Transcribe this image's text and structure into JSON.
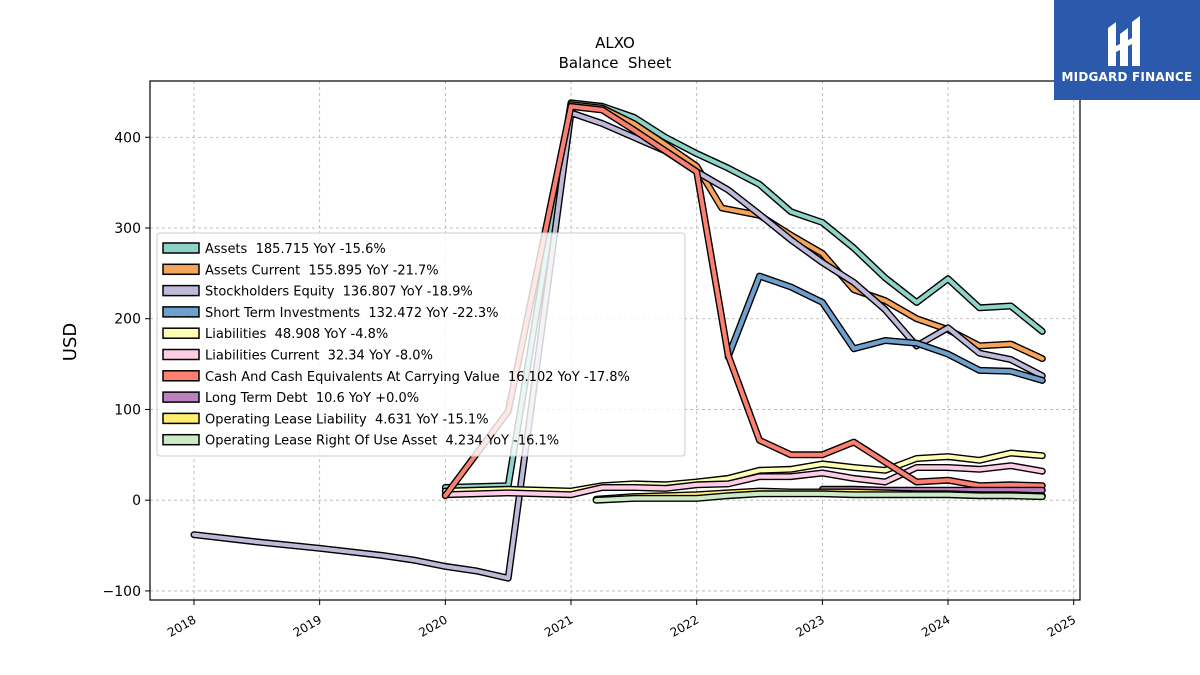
{
  "logo": {
    "text": "MIDGARD FINANCE",
    "icon": "midgard-logo-icon",
    "background": "#2b5aac"
  },
  "chart_data": {
    "type": "line",
    "title": "ALXO",
    "subtitle": "Balance  Sheet",
    "ylabel": "USD",
    "xlabel": "",
    "xlim": [
      2017.65,
      2025.05
    ],
    "ylim": [
      -110,
      462
    ],
    "x_ticks": [
      2018,
      2019,
      2020,
      2021,
      2022,
      2023,
      2024,
      2025
    ],
    "x_tick_labels": [
      "2018",
      "2019",
      "2020",
      "2021",
      "2022",
      "2023",
      "2024",
      "2025"
    ],
    "y_ticks": [
      -100,
      0,
      100,
      200,
      300,
      400
    ],
    "y_tick_labels": [
      "−100",
      "0",
      "100",
      "200",
      "300",
      "400"
    ],
    "grid": true,
    "legend_position": "center-left",
    "series": [
      {
        "name": "Assets",
        "legend": "Assets  185.715 YoY -15.6%",
        "color": "#8dd3c7",
        "points": [
          [
            2020.0,
            14
          ],
          [
            2020.5,
            16
          ],
          [
            2021.0,
            438
          ],
          [
            2021.25,
            434
          ],
          [
            2021.5,
            422
          ],
          [
            2021.75,
            400
          ],
          [
            2022.0,
            382
          ],
          [
            2022.25,
            366
          ],
          [
            2022.5,
            348
          ],
          [
            2022.75,
            318
          ],
          [
            2023.0,
            306
          ],
          [
            2023.25,
            278
          ],
          [
            2023.5,
            245
          ],
          [
            2023.75,
            218
          ],
          [
            2024.0,
            244
          ],
          [
            2024.25,
            212
          ],
          [
            2024.5,
            214
          ],
          [
            2024.75,
            186
          ]
        ]
      },
      {
        "name": "Assets Current",
        "legend": "Assets Current  155.895 YoY -21.7%",
        "color": "#f6a45b",
        "points": [
          [
            2021.0,
            436
          ],
          [
            2021.25,
            432
          ],
          [
            2021.5,
            415
          ],
          [
            2021.75,
            392
          ],
          [
            2022.0,
            368
          ],
          [
            2022.2,
            322
          ],
          [
            2022.5,
            314
          ],
          [
            2022.75,
            292
          ],
          [
            2023.0,
            272
          ],
          [
            2023.25,
            232
          ],
          [
            2023.5,
            220
          ],
          [
            2023.75,
            200
          ],
          [
            2024.0,
            188
          ],
          [
            2024.25,
            170
          ],
          [
            2024.5,
            172
          ],
          [
            2024.75,
            156
          ]
        ]
      },
      {
        "name": "Stockholders Equity",
        "legend": "Stockholders Equity  136.807 YoY -18.9%",
        "color": "#bebada",
        "points": [
          [
            2018.0,
            -38
          ],
          [
            2018.5,
            -46
          ],
          [
            2019.0,
            -53
          ],
          [
            2019.5,
            -61
          ],
          [
            2019.75,
            -66
          ],
          [
            2020.0,
            -73
          ],
          [
            2020.25,
            -78
          ],
          [
            2020.5,
            -86
          ],
          [
            2021.0,
            427
          ],
          [
            2021.25,
            415
          ],
          [
            2021.5,
            400
          ],
          [
            2021.75,
            385
          ],
          [
            2022.0,
            362
          ],
          [
            2022.25,
            342
          ],
          [
            2022.5,
            315
          ],
          [
            2022.75,
            287
          ],
          [
            2023.0,
            262
          ],
          [
            2023.25,
            240
          ],
          [
            2023.5,
            210
          ],
          [
            2023.75,
            170
          ],
          [
            2024.0,
            190
          ],
          [
            2024.25,
            162
          ],
          [
            2024.5,
            155
          ],
          [
            2024.75,
            137
          ]
        ]
      },
      {
        "name": "Short Term Investments",
        "legend": "Short Term Investments  132.472 YoY -22.3%",
        "color": "#6fa0cd",
        "points": [
          [
            2022.25,
            158
          ],
          [
            2022.5,
            247
          ],
          [
            2022.75,
            235
          ],
          [
            2023.0,
            218
          ],
          [
            2023.25,
            167
          ],
          [
            2023.5,
            176
          ],
          [
            2023.75,
            173
          ],
          [
            2024.0,
            161
          ],
          [
            2024.25,
            143
          ],
          [
            2024.5,
            142
          ],
          [
            2024.75,
            132
          ]
        ]
      },
      {
        "name": "Liabilities",
        "legend": "Liabilities  48.908 YoY -4.8%",
        "color": "#ffffb3",
        "points": [
          [
            2020.0,
            10
          ],
          [
            2020.5,
            12
          ],
          [
            2021.0,
            10
          ],
          [
            2021.25,
            16
          ],
          [
            2021.5,
            18
          ],
          [
            2021.75,
            17
          ],
          [
            2022.0,
            20
          ],
          [
            2022.25,
            24
          ],
          [
            2022.5,
            33
          ],
          [
            2022.75,
            34
          ],
          [
            2023.0,
            40
          ],
          [
            2023.25,
            36
          ],
          [
            2023.5,
            33
          ],
          [
            2023.75,
            46
          ],
          [
            2024.0,
            48
          ],
          [
            2024.25,
            44
          ],
          [
            2024.5,
            52
          ],
          [
            2024.75,
            49
          ]
        ]
      },
      {
        "name": "Liabilities Current",
        "legend": "Liabilities Current  32.34 YoY -8.0%",
        "color": "#fccde5",
        "points": [
          [
            2020.0,
            6
          ],
          [
            2020.5,
            8
          ],
          [
            2021.0,
            6
          ],
          [
            2021.25,
            14
          ],
          [
            2021.5,
            14
          ],
          [
            2021.75,
            13
          ],
          [
            2022.0,
            17
          ],
          [
            2022.25,
            18
          ],
          [
            2022.5,
            26
          ],
          [
            2022.75,
            26
          ],
          [
            2023.0,
            30
          ],
          [
            2023.25,
            24
          ],
          [
            2023.5,
            20
          ],
          [
            2023.75,
            36
          ],
          [
            2024.0,
            36
          ],
          [
            2024.25,
            34
          ],
          [
            2024.5,
            38
          ],
          [
            2024.75,
            32
          ]
        ]
      },
      {
        "name": "Cash And Cash Equivalents At Carrying Value",
        "legend": "Cash And Cash Equivalents At Carrying Value  16.102 YoY -17.8%",
        "color": "#fb8072",
        "points": [
          [
            2020.0,
            5
          ],
          [
            2020.5,
            98
          ],
          [
            2021.0,
            434
          ],
          [
            2021.25,
            430
          ],
          [
            2021.5,
            408
          ],
          [
            2021.75,
            385
          ],
          [
            2022.0,
            362
          ],
          [
            2022.25,
            160
          ],
          [
            2022.5,
            66
          ],
          [
            2022.75,
            50
          ],
          [
            2023.0,
            50
          ],
          [
            2023.25,
            64
          ],
          [
            2023.5,
            42
          ],
          [
            2023.75,
            20
          ],
          [
            2024.0,
            22
          ],
          [
            2024.25,
            16
          ],
          [
            2024.5,
            17
          ],
          [
            2024.75,
            16
          ]
        ]
      },
      {
        "name": "Long Term Debt",
        "legend": "Long Term Debt  10.6 YoY +0.0%",
        "color": "#bc80bd",
        "points": [
          [
            2023.0,
            12
          ],
          [
            2023.25,
            12
          ],
          [
            2023.5,
            11
          ],
          [
            2023.75,
            11
          ],
          [
            2024.0,
            11
          ],
          [
            2024.25,
            11
          ],
          [
            2024.5,
            11
          ],
          [
            2024.75,
            11
          ]
        ]
      },
      {
        "name": "Operating Lease Liability",
        "legend": "Operating Lease Liability  4.631 YoY -15.1%",
        "color": "#ffed6f",
        "points": [
          [
            2021.2,
            1
          ],
          [
            2021.5,
            4
          ],
          [
            2021.75,
            5
          ],
          [
            2022.0,
            6
          ],
          [
            2022.25,
            8
          ],
          [
            2022.5,
            10
          ],
          [
            2022.75,
            9
          ],
          [
            2023.0,
            9
          ],
          [
            2023.25,
            9
          ],
          [
            2023.5,
            8
          ],
          [
            2023.75,
            7
          ],
          [
            2024.0,
            7
          ],
          [
            2024.25,
            6
          ],
          [
            2024.5,
            6
          ],
          [
            2024.75,
            5
          ]
        ]
      },
      {
        "name": "Operating Lease Right Of Use Asset",
        "legend": "Operating Lease Right Of Use Asset  4.234 YoY -16.1%",
        "color": "#ccebc5",
        "points": [
          [
            2021.2,
            0
          ],
          [
            2021.5,
            2
          ],
          [
            2021.75,
            2
          ],
          [
            2022.0,
            2
          ],
          [
            2022.25,
            5
          ],
          [
            2022.5,
            7
          ],
          [
            2022.75,
            7
          ],
          [
            2023.0,
            7
          ],
          [
            2023.25,
            6
          ],
          [
            2023.5,
            6
          ],
          [
            2023.75,
            6
          ],
          [
            2024.0,
            6
          ],
          [
            2024.25,
            5
          ],
          [
            2024.5,
            5
          ],
          [
            2024.75,
            4
          ]
        ]
      }
    ]
  }
}
